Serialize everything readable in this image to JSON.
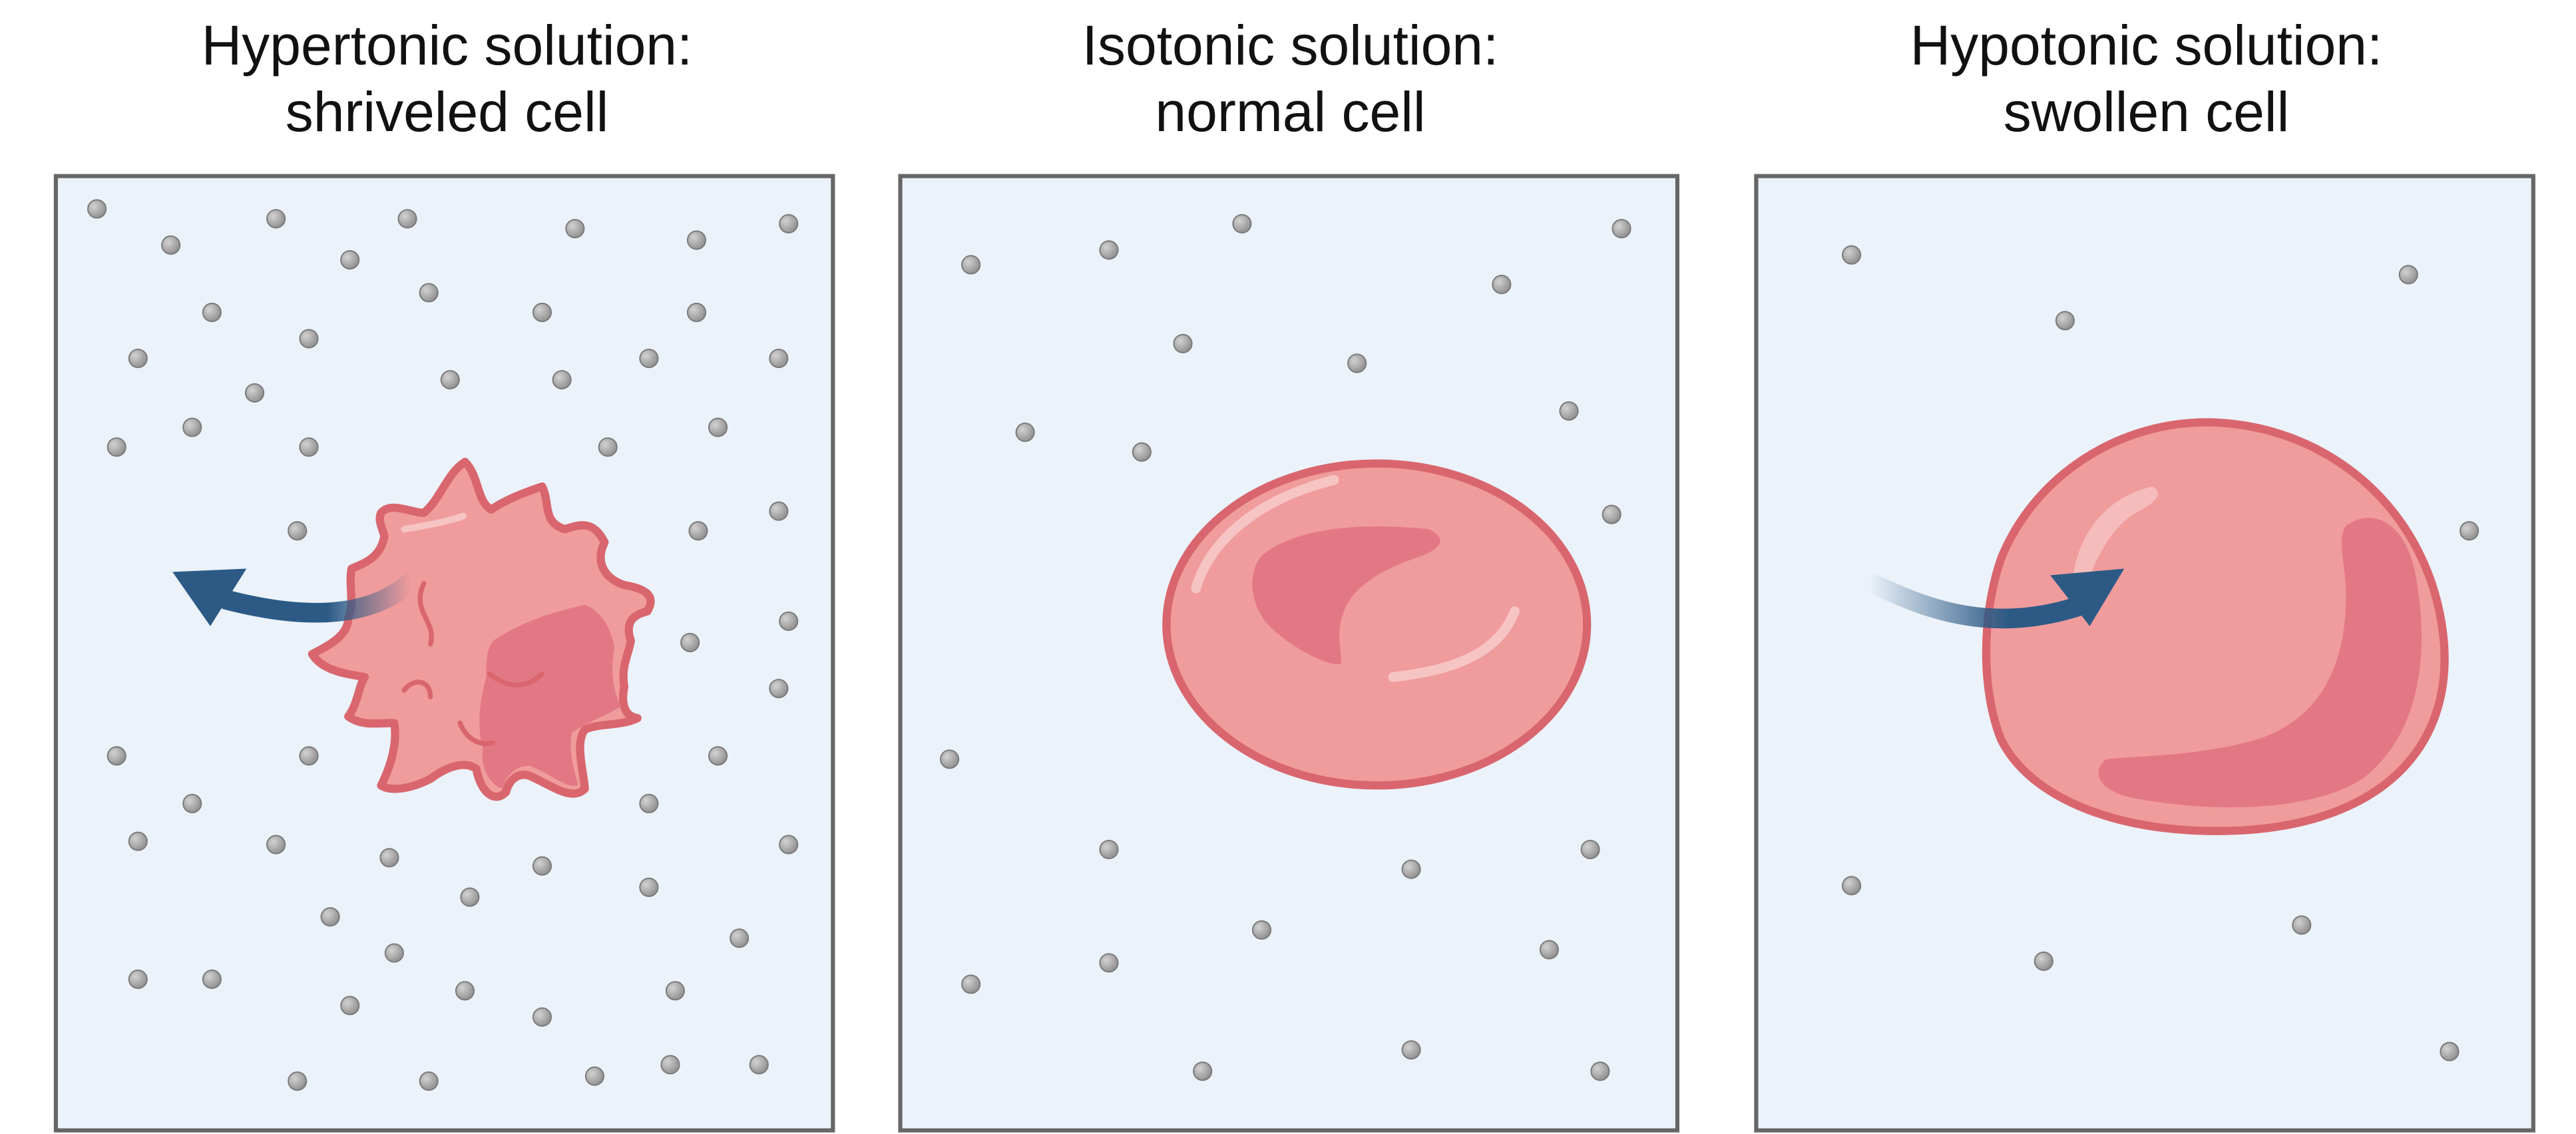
{
  "panels": [
    {
      "title_line1": "Hypertonic solution:",
      "title_line2": "shriveled cell"
    },
    {
      "title_line1": "Isotonic solution:",
      "title_line2": "normal cell"
    },
    {
      "title_line1": "Hypotonic solution:",
      "title_line2": "swollen cell"
    }
  ],
  "colors": {
    "solution_fill": "#EBF2FA",
    "frame": "#666666",
    "particle": "#9E9E9E",
    "cell_fill": "#F09C9C",
    "cell_outline": "#D9666E",
    "cell_shadow": "#E37885",
    "arrow": "#2C5A85"
  }
}
